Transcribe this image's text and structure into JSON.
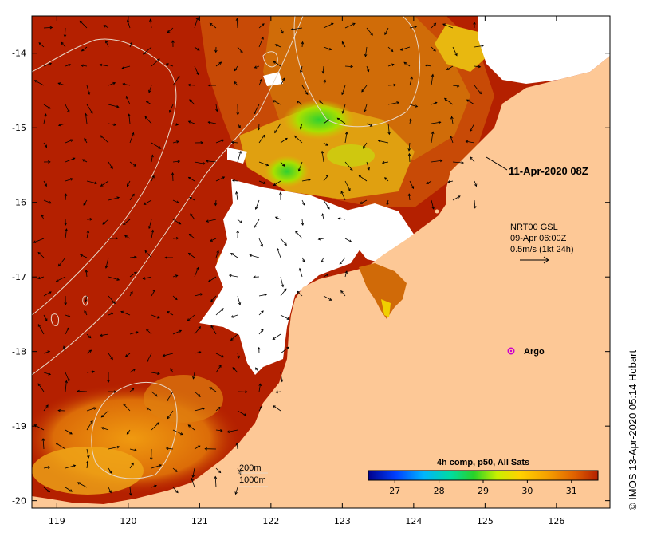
{
  "map": {
    "x_ticks": [
      "119",
      "120",
      "121",
      "122",
      "123",
      "124",
      "125",
      "126"
    ],
    "y_ticks": [
      "-14",
      "-15",
      "-16",
      "-17",
      "-18",
      "-19",
      "-20"
    ],
    "x_tick_values": [
      119,
      120,
      121,
      122,
      123,
      124,
      125,
      126
    ],
    "y_tick_values": [
      -14,
      -15,
      -16,
      -17,
      -18,
      -19,
      -20
    ],
    "lon_range": [
      118.65,
      126.75
    ],
    "lat_range": [
      -20.1,
      -13.5
    ],
    "land_color": "#fdc896",
    "cloud_color": "#ffffff",
    "sst_hot_color": "#b42000"
  },
  "annotations": {
    "pass_time": "11-Apr-2020 08Z",
    "current_source": "NRT00 GSL",
    "current_time": "09-Apr 06:00Z",
    "current_scale": "0.5m/s (1kt 24h)",
    "argo_label": "Argo",
    "argo_color": "#cc00cc",
    "isobath_200": "200m",
    "isobath_1000": "1000m"
  },
  "colorbar": {
    "title": "4h comp, p50, All Sats",
    "tick_labels": [
      "27",
      "28",
      "29",
      "30",
      "31"
    ],
    "range": [
      26.4,
      31.6
    ],
    "stops": [
      "#00008c",
      "#0040ff",
      "#00b4ff",
      "#00dca0",
      "#28d228",
      "#c8f000",
      "#ffd200",
      "#f5a000",
      "#e06000",
      "#b42000"
    ]
  },
  "credit": {
    "text": "© IMOS 13-Apr-2020 05:14 Hobart"
  }
}
